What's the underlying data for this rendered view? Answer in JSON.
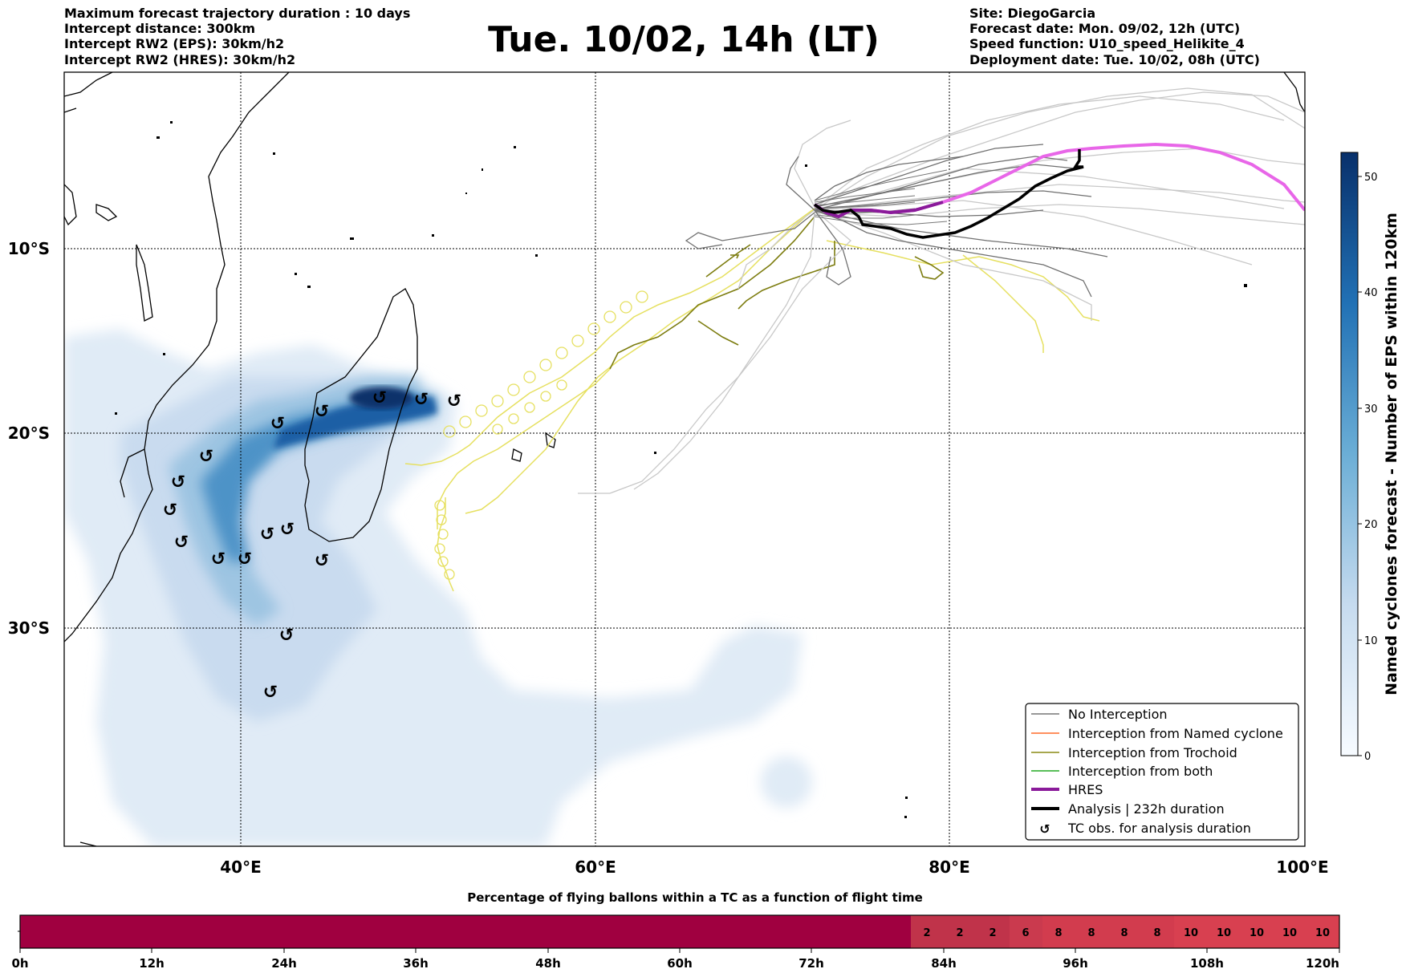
{
  "header": {
    "left": [
      "Maximum forecast trajectory duration : 10 days",
      "Intercept distance: 300km",
      "Intercept RW2 (EPS):  30km/h2",
      "Intercept RW2 (HRES): 30km/h2"
    ],
    "title": "Tue. 10/02, 14h (LT)",
    "right": [
      "Site: DiegoGarcia",
      "Forecast date: Mon. 09/02, 12h (UTC)",
      "Speed function: U10_speed_Helikite_4",
      "Deployment date: Tue. 10/02, 08h (UTC)"
    ]
  },
  "map": {
    "lon_labels": [
      "40°E",
      "60°E",
      "80°E",
      "100°E"
    ],
    "lat_labels": [
      "10°S",
      "20°S",
      "30°S"
    ]
  },
  "legend": {
    "items": [
      {
        "label": "No Interception",
        "color": "#777777",
        "kind": "thin"
      },
      {
        "label": "Interception from Named cyclone",
        "color": "#ff6a2a",
        "kind": "thin"
      },
      {
        "label": "Interception from Trochoid",
        "color": "#8a8a14",
        "kind": "thin"
      },
      {
        "label": "Interception from both",
        "color": "#22aa22",
        "kind": "thin"
      },
      {
        "label": "HRES",
        "color": "#8a1a9a",
        "kind": "thick"
      },
      {
        "label": "Analysis | 232h duration",
        "color": "#000000",
        "kind": "thick"
      },
      {
        "label": "TC obs. for analysis duration",
        "color": "#000000",
        "kind": "symbol"
      }
    ]
  },
  "colorbar": {
    "title": "Named cyclones forecast - Number of EPS within 120km",
    "ticks": [
      "0",
      "10",
      "20",
      "30",
      "40",
      "50"
    ]
  },
  "bottom_bar": {
    "title": "Percentage of flying ballons within a TC as a function of flight time",
    "tick_labels": [
      "0h",
      "12h",
      "24h",
      "36h",
      "48h",
      "60h",
      "72h",
      "84h",
      "96h",
      "108h",
      "120h"
    ],
    "cell_values": [
      "2",
      "2",
      "2",
      "6",
      "8",
      "8",
      "8",
      "8",
      "10",
      "10",
      "10",
      "10",
      "10"
    ]
  },
  "colors": {
    "density_light": "#dce8f5",
    "density_dark": "#08306b",
    "hres": "#e866e8",
    "trochoid_yellow": "#e6e060",
    "bar_main": "#a00040",
    "bar_light": "#d84050"
  }
}
